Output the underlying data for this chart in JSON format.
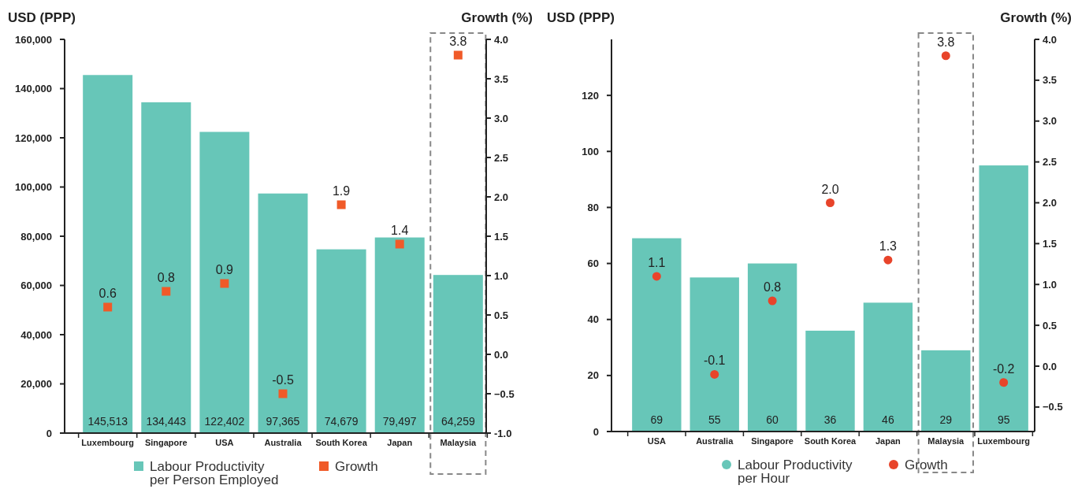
{
  "chart_data": [
    {
      "type": "bar",
      "ylabel": "USD (PPP)",
      "y2label": "Growth (%)",
      "categories": [
        "Luxembourg",
        "Singapore",
        "USA",
        "Australia",
        "South Korea",
        "Japan",
        "Malaysia"
      ],
      "series": [
        {
          "name": "Labour Productivity per Person Employed",
          "color": "#67c6b8",
          "values": [
            145513,
            134443,
            122402,
            97365,
            74679,
            79497,
            64259
          ],
          "value_labels": [
            "145,513",
            "134,443",
            "122,402",
            "97,365",
            "74,679",
            "79,497",
            "64,259"
          ]
        },
        {
          "name": "Growth",
          "type": "scatter",
          "axis": "y2",
          "marker": "square",
          "color": "#f05a28",
          "values": [
            0.6,
            0.8,
            0.9,
            -0.5,
            1.9,
            1.4,
            3.8
          ],
          "value_labels": [
            "0.6",
            "0.8",
            "0.9",
            "-0.5",
            "1.9",
            "1.4",
            "3.8"
          ]
        }
      ],
      "ylim": [
        0,
        160000
      ],
      "yticks": [
        0,
        {
          "value": 20000,
          "label": "20,000"
        },
        {
          "value": 40000,
          "label": "40,000"
        },
        {
          "value": 60000,
          "label": "60,000"
        },
        {
          "value": 80000,
          "label": "80,000"
        },
        {
          "value": 100000,
          "label": "100,000"
        },
        {
          "value": 120000,
          "label": "120,000"
        },
        {
          "value": 140000,
          "label": "140,000"
        },
        {
          "value": 160000,
          "label": "160,000"
        }
      ],
      "y2lim": [
        -1,
        4
      ],
      "y2ticks": [
        {
          "value": -1,
          "label": "-1.0"
        },
        -0.5,
        {
          "value": 0,
          "label": "0.0"
        },
        0.5,
        {
          "value": 1,
          "label": "1.0"
        },
        1.5,
        {
          "value": 2,
          "label": "2.0"
        },
        2.5,
        {
          "value": 3,
          "label": "3.0"
        },
        3.5,
        {
          "value": 4,
          "label": "4.0"
        }
      ],
      "legend": "bottom",
      "grid": false
    },
    {
      "type": "bar",
      "ylabel": "USD (PPP)",
      "y2label": "Growth (%)",
      "categories": [
        "USA",
        "Australia",
        "Singapore",
        "South Korea",
        "Japan",
        "Malaysia",
        "Luxembourg"
      ],
      "series": [
        {
          "name": "Labour Productivity per Hour",
          "color": "#67c6b8",
          "values": [
            69,
            55,
            60,
            36,
            46,
            29,
            95
          ],
          "value_labels": [
            "69",
            "55",
            "60",
            "36",
            "46",
            "29",
            "95"
          ]
        },
        {
          "name": "Growth",
          "type": "scatter",
          "axis": "y2",
          "marker": "circle",
          "color": "#e8442a",
          "values": [
            1.1,
            -0.1,
            0.8,
            2.0,
            1.3,
            3.8,
            -0.2
          ],
          "value_labels": [
            "1.1",
            "-0.1",
            "0.8",
            "2.0",
            "1.3",
            "3.8",
            "-0.2"
          ]
        }
      ],
      "ylim": [
        0,
        140
      ],
      "yticks": [
        0,
        20,
        40,
        60,
        80,
        100,
        120
      ],
      "y2lim": [
        -0.8,
        4
      ],
      "y2ticks": [
        -0.5,
        {
          "value": 0,
          "label": "0.0"
        },
        0.5,
        {
          "value": 1,
          "label": "1.0"
        },
        1.5,
        {
          "value": 2,
          "label": "2.0"
        },
        2.5,
        {
          "value": 3,
          "label": "3.0"
        },
        3.5,
        {
          "value": 4,
          "label": "4.0"
        }
      ],
      "legend": "bottom",
      "grid": false
    }
  ]
}
